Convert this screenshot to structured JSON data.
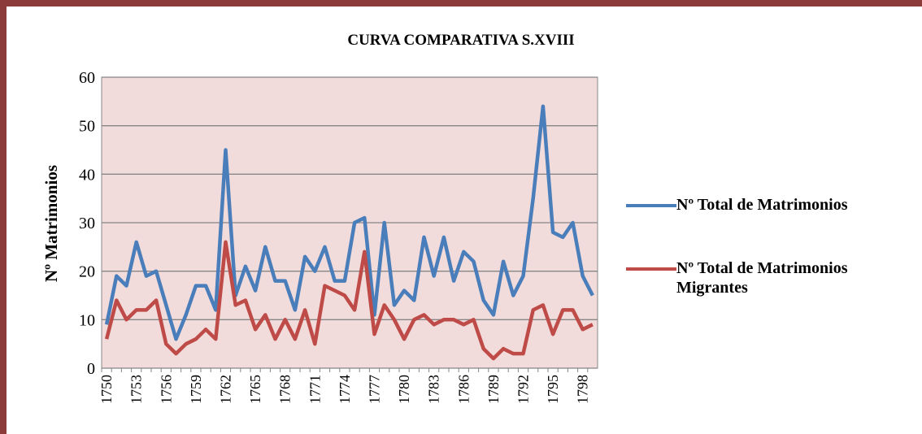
{
  "chart_data": {
    "type": "line",
    "title": "CURVA COMPARATIVA S.XVIII",
    "y_label": "Nº Matrimonios",
    "categories": [
      "1750",
      null,
      null,
      "1753",
      null,
      null,
      "1756",
      null,
      null,
      "1759",
      null,
      null,
      "1762",
      null,
      null,
      "1765",
      null,
      null,
      "1768",
      null,
      null,
      "1771",
      null,
      null,
      "1774",
      null,
      null,
      "1777",
      null,
      null,
      "1780",
      null,
      null,
      "1783",
      null,
      null,
      "1786",
      null,
      null,
      "1789",
      null,
      null,
      "1792",
      null,
      null,
      "1795",
      null,
      null,
      "1798",
      null
    ],
    "series": [
      {
        "name": "Nº Total de Matrimonios",
        "color": "#4a7ebb",
        "values": [
          9,
          19,
          17,
          26,
          19,
          20,
          13,
          6,
          11,
          17,
          17,
          12,
          45,
          15,
          21,
          16,
          25,
          18,
          18,
          12,
          23,
          20,
          25,
          18,
          18,
          30,
          31,
          11,
          30,
          13,
          16,
          14,
          27,
          19,
          27,
          18,
          24,
          22,
          14,
          11,
          22,
          15,
          19,
          35,
          54,
          28,
          27,
          30,
          19,
          15
        ]
      },
      {
        "name": "Nº Total de Matrimonios Migrantes",
        "color": "#be4b48",
        "values": [
          6,
          14,
          10,
          12,
          12,
          14,
          5,
          3,
          5,
          6,
          8,
          6,
          26,
          13,
          14,
          8,
          11,
          6,
          10,
          6,
          12,
          5,
          17,
          16,
          15,
          12,
          24,
          7,
          13,
          10,
          6,
          10,
          11,
          9,
          10,
          10,
          9,
          10,
          4,
          2,
          4,
          3,
          3,
          12,
          13,
          7,
          12,
          12,
          8,
          9
        ]
      }
    ],
    "ylim": [
      0,
      60
    ],
    "yticks": [
      0,
      10,
      20,
      30,
      40,
      50,
      60
    ],
    "grid": true,
    "plot_background": "#f2dcdb",
    "legend": "right"
  }
}
